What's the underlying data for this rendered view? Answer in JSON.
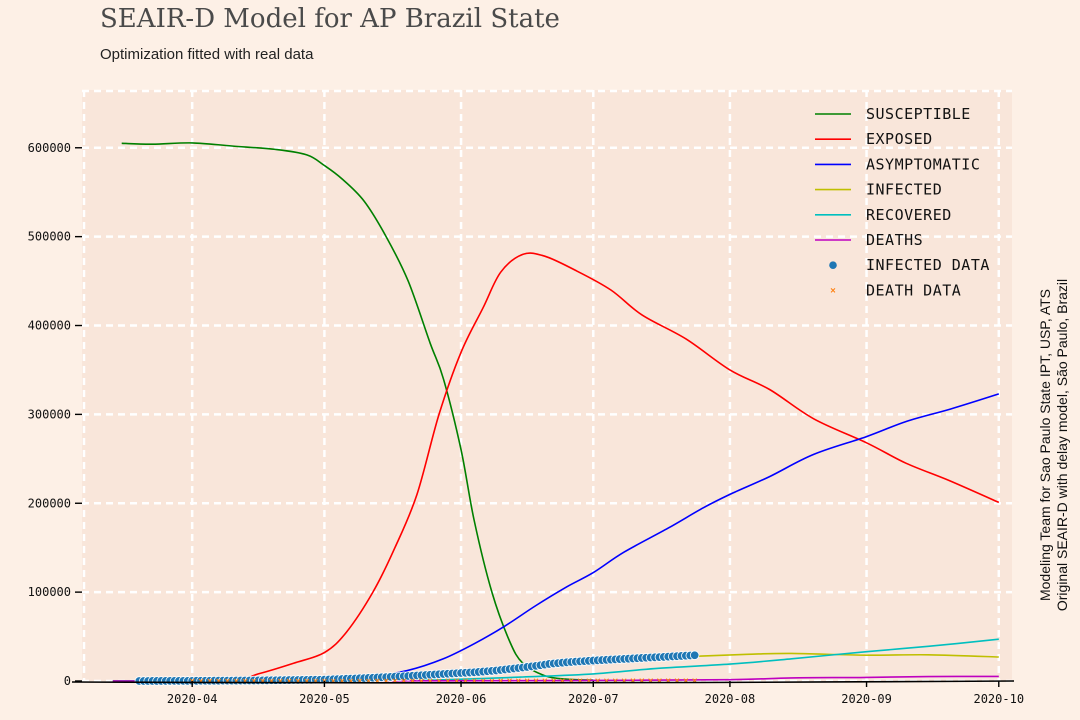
{
  "title": "SEAIR-D Model for AP Brazil State",
  "subtitle": "Optimization fitted with real data",
  "credits": {
    "line1": "Modeling Team for Sao Paulo State IPT, USP, ATS",
    "line2": "Original SEAIR-D with delay model, São Paulo, Brazil"
  },
  "colors": {
    "background": "#fdf0e6",
    "plot_area": "#f9e6da",
    "grid": "#ffffff",
    "susceptible": "#008000",
    "exposed": "#ff0000",
    "asymptomatic": "#0000ff",
    "infected": "#bfbf00",
    "recovered": "#00bfbf",
    "deaths": "#bf00bf",
    "infected_data": "#1f77b4",
    "death_data": "#ff7f0e"
  },
  "chart_data": {
    "type": "line",
    "x_type": "date",
    "xlim": [
      "2020-03-07",
      "2020-10-04"
    ],
    "ylim": [
      0,
      665000
    ],
    "grid": true,
    "legend_position": "top-right",
    "x_ticks": [
      {
        "date": "2020-04-01",
        "label": "2020-04"
      },
      {
        "date": "2020-05-01",
        "label": "2020-05"
      },
      {
        "date": "2020-06-01",
        "label": "2020-06"
      },
      {
        "date": "2020-07-01",
        "label": "2020-07"
      },
      {
        "date": "2020-08-01",
        "label": "2020-08"
      },
      {
        "date": "2020-09-01",
        "label": "2020-09"
      },
      {
        "date": "2020-10-01",
        "label": "2020-10"
      }
    ],
    "y_ticks": [
      {
        "value": 0,
        "label": "0"
      },
      {
        "value": 100000,
        "label": "100000"
      },
      {
        "value": 200000,
        "label": "200000"
      },
      {
        "value": 300000,
        "label": "300000"
      },
      {
        "value": 400000,
        "label": "400000"
      },
      {
        "value": 500000,
        "label": "500000"
      },
      {
        "value": 600000,
        "label": "600000"
      }
    ],
    "series": [
      {
        "name": "SUSCEPTIBLE",
        "color": "#008000",
        "kind": "line",
        "points": [
          [
            "2020-03-16",
            605000
          ],
          [
            "2020-03-23",
            604000
          ],
          [
            "2020-04-01",
            605500
          ],
          [
            "2020-04-10",
            602000
          ],
          [
            "2020-04-20",
            598000
          ],
          [
            "2020-04-27",
            592000
          ],
          [
            "2020-05-01",
            580000
          ],
          [
            "2020-05-05",
            565000
          ],
          [
            "2020-05-10",
            540000
          ],
          [
            "2020-05-15",
            500000
          ],
          [
            "2020-05-20",
            450000
          ],
          [
            "2020-05-25",
            380000
          ],
          [
            "2020-05-28",
            340000
          ],
          [
            "2020-06-01",
            260000
          ],
          [
            "2020-06-04",
            180000
          ],
          [
            "2020-06-08",
            100000
          ],
          [
            "2020-06-12",
            45000
          ],
          [
            "2020-06-15",
            20000
          ],
          [
            "2020-06-20",
            6000
          ],
          [
            "2020-06-25",
            2000
          ],
          [
            "2020-07-01",
            1000
          ]
        ]
      },
      {
        "name": "EXPOSED",
        "color": "#ff0000",
        "kind": "line",
        "points": [
          [
            "2020-03-14",
            0
          ],
          [
            "2020-04-09",
            0
          ],
          [
            "2020-04-16",
            8000
          ],
          [
            "2020-04-24",
            20000
          ],
          [
            "2020-05-01",
            32000
          ],
          [
            "2020-05-06",
            55000
          ],
          [
            "2020-05-12",
            100000
          ],
          [
            "2020-05-17",
            150000
          ],
          [
            "2020-05-22",
            210000
          ],
          [
            "2020-05-27",
            300000
          ],
          [
            "2020-06-01",
            370000
          ],
          [
            "2020-06-06",
            420000
          ],
          [
            "2020-06-10",
            460000
          ],
          [
            "2020-06-15",
            480000
          ],
          [
            "2020-06-20",
            478000
          ],
          [
            "2020-06-27",
            462000
          ],
          [
            "2020-07-05",
            440000
          ],
          [
            "2020-07-12",
            412000
          ],
          [
            "2020-07-22",
            385000
          ],
          [
            "2020-08-01",
            350000
          ],
          [
            "2020-08-10",
            328000
          ],
          [
            "2020-08-20",
            295000
          ],
          [
            "2020-09-01",
            268000
          ],
          [
            "2020-09-10",
            245000
          ],
          [
            "2020-09-20",
            225000
          ],
          [
            "2020-10-01",
            201000
          ]
        ]
      },
      {
        "name": "ASYMPTOMATIC",
        "color": "#0000ff",
        "kind": "line",
        "points": [
          [
            "2020-03-14",
            0
          ],
          [
            "2020-04-20",
            1000
          ],
          [
            "2020-05-10",
            4000
          ],
          [
            "2020-05-20",
            12000
          ],
          [
            "2020-05-28",
            25000
          ],
          [
            "2020-06-04",
            42000
          ],
          [
            "2020-06-11",
            62000
          ],
          [
            "2020-06-18",
            85000
          ],
          [
            "2020-06-25",
            106000
          ],
          [
            "2020-07-01",
            122000
          ],
          [
            "2020-07-08",
            145000
          ],
          [
            "2020-07-18",
            172000
          ],
          [
            "2020-07-26",
            195000
          ],
          [
            "2020-08-01",
            210000
          ],
          [
            "2020-08-10",
            230000
          ],
          [
            "2020-08-20",
            255000
          ],
          [
            "2020-09-01",
            275000
          ],
          [
            "2020-09-10",
            292000
          ],
          [
            "2020-09-20",
            306000
          ],
          [
            "2020-10-01",
            323000
          ]
        ]
      },
      {
        "name": "INFECTED",
        "color": "#bfbf00",
        "kind": "line",
        "points": [
          [
            "2020-03-14",
            0
          ],
          [
            "2020-05-01",
            500
          ],
          [
            "2020-05-20",
            4000
          ],
          [
            "2020-06-05",
            10000
          ],
          [
            "2020-06-20",
            18000
          ],
          [
            "2020-07-05",
            24000
          ],
          [
            "2020-07-20",
            27000
          ],
          [
            "2020-08-05",
            30000
          ],
          [
            "2020-08-15",
            31000
          ],
          [
            "2020-09-01",
            29000
          ],
          [
            "2020-09-15",
            29500
          ],
          [
            "2020-10-01",
            27000
          ]
        ]
      },
      {
        "name": "RECOVERED",
        "color": "#00bfbf",
        "kind": "line",
        "points": [
          [
            "2020-03-14",
            0
          ],
          [
            "2020-05-15",
            500
          ],
          [
            "2020-06-01",
            2000
          ],
          [
            "2020-06-15",
            4500
          ],
          [
            "2020-07-01",
            8000
          ],
          [
            "2020-07-15",
            14000
          ],
          [
            "2020-08-01",
            19000
          ],
          [
            "2020-08-15",
            25000
          ],
          [
            "2020-09-01",
            33000
          ],
          [
            "2020-09-15",
            39000
          ],
          [
            "2020-10-01",
            47000
          ]
        ]
      },
      {
        "name": "DEATHS",
        "color": "#bf00bf",
        "kind": "line",
        "points": [
          [
            "2020-03-14",
            0
          ],
          [
            "2020-06-01",
            200
          ],
          [
            "2020-07-01",
            700
          ],
          [
            "2020-08-01",
            1500
          ],
          [
            "2020-08-15",
            3500
          ],
          [
            "2020-09-01",
            4000
          ],
          [
            "2020-09-15",
            5000
          ],
          [
            "2020-10-01",
            5200
          ]
        ]
      },
      {
        "name": "INFECTED DATA",
        "color": "#1f77b4",
        "kind": "scatter",
        "marker": "circle",
        "points": [
          [
            "2020-03-20",
            1
          ],
          [
            "2020-04-01",
            180
          ],
          [
            "2020-04-15",
            600
          ],
          [
            "2020-05-01",
            1500
          ],
          [
            "2020-05-10",
            3200
          ],
          [
            "2020-05-20",
            5600
          ],
          [
            "2020-05-25",
            7000
          ],
          [
            "2020-05-30",
            8400
          ],
          [
            "2020-06-04",
            9800
          ],
          [
            "2020-06-09",
            11800
          ],
          [
            "2020-06-14",
            14600
          ],
          [
            "2020-06-18",
            17000
          ],
          [
            "2020-06-21",
            19200
          ],
          [
            "2020-06-24",
            20600
          ],
          [
            "2020-06-27",
            21800
          ],
          [
            "2020-07-01",
            23000
          ],
          [
            "2020-07-05",
            24100
          ],
          [
            "2020-07-09",
            25100
          ],
          [
            "2020-07-13",
            26200
          ],
          [
            "2020-07-17",
            27100
          ],
          [
            "2020-07-21",
            28200
          ],
          [
            "2020-07-24",
            29000
          ]
        ]
      },
      {
        "name": "DEATH DATA",
        "color": "#ff7f0e",
        "kind": "scatter",
        "marker": "x",
        "points": [
          [
            "2020-04-01",
            2
          ],
          [
            "2020-04-20",
            20
          ],
          [
            "2020-05-10",
            80
          ],
          [
            "2020-05-30",
            180
          ],
          [
            "2020-06-20",
            300
          ],
          [
            "2020-07-10",
            380
          ],
          [
            "2020-07-24",
            430
          ]
        ]
      }
    ]
  }
}
